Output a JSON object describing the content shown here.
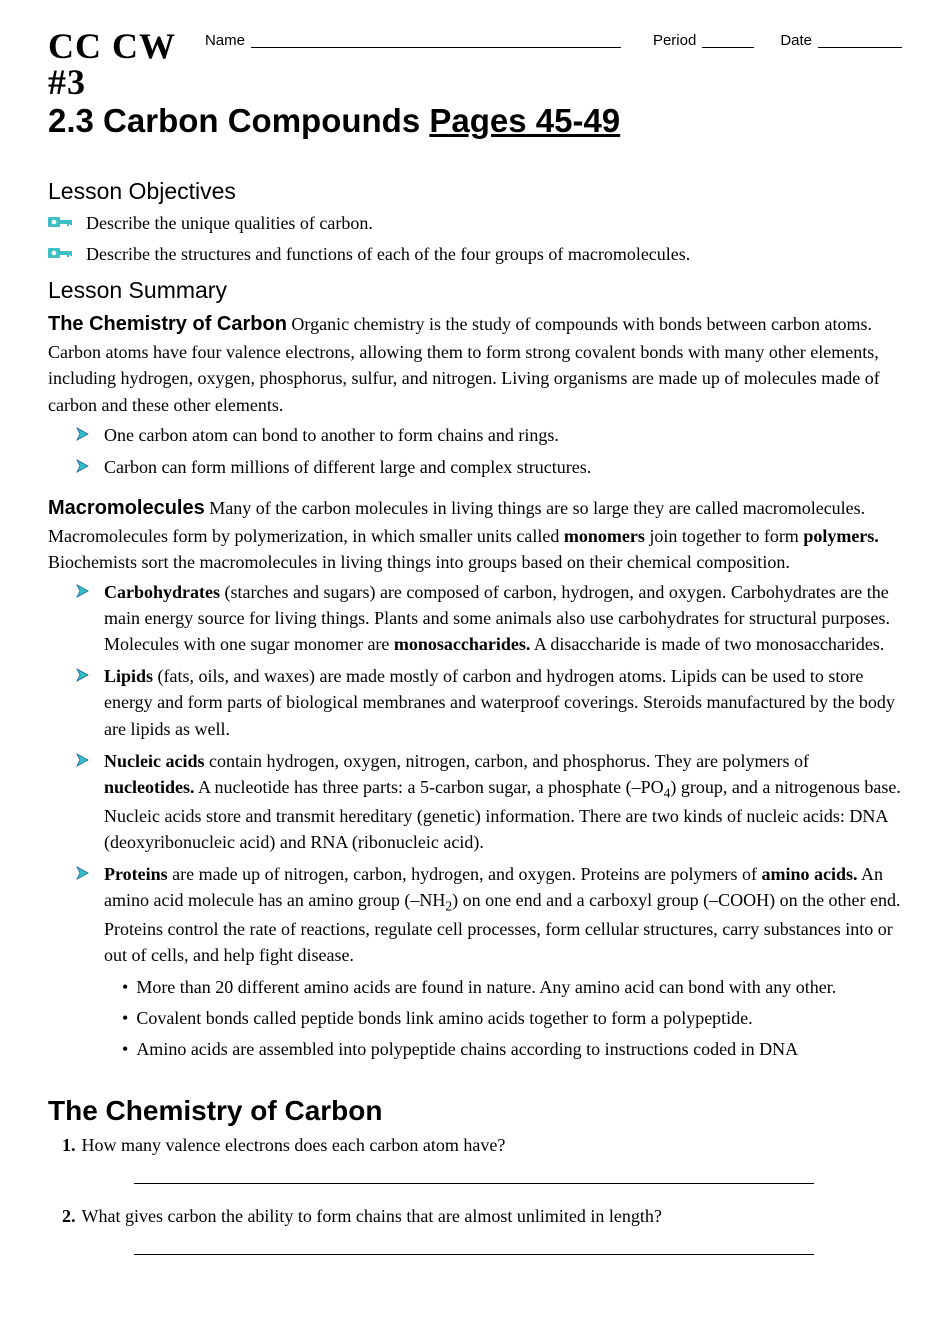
{
  "header": {
    "tag": "CC CW #3",
    "name_label": "Name",
    "period_label": "Period",
    "date_label": "Date"
  },
  "title": {
    "prefix": "2.3 Carbon Compounds ",
    "pages": "Pages 45-49"
  },
  "colors": {
    "key_icon_fill": "#3fbfc4",
    "arrow_fill": "#30c2c7",
    "arrow_stroke": "#1f5fa0",
    "text": "#000000",
    "background": "#ffffff"
  },
  "objectives": {
    "heading": "Lesson Objectives",
    "items": [
      "Describe the unique qualities of carbon.",
      "Describe the structures and functions of each of the four groups of macromolecules."
    ]
  },
  "summary": {
    "heading": "Lesson Summary",
    "chem_lead": "The Chemistry of Carbon",
    "chem_text": " Organic chemistry is the study of compounds with bonds between carbon atoms. Carbon atoms have four valence electrons, allowing them to form strong covalent bonds with many other elements, including hydrogen, oxygen, phosphorus, sulfur, and nitrogen. Living organisms are made up of molecules made of carbon and these other elements.",
    "chem_bullets": [
      "One carbon atom can bond to another to form chains and rings.",
      "Carbon can form millions of different large and complex structures."
    ],
    "macro_lead": "Macromolecules",
    "macro_text": " Many of the carbon molecules in living things are so large they are called macromolecules. Macromolecules form by polymerization, in which smaller units called ",
    "macro_b1": "monomers",
    "macro_text2": " join together to form ",
    "macro_b2": "polymers.",
    "macro_text3": " Biochemists sort the macromolecules in living things into groups based on their chemical composition.",
    "macro_items": [
      {
        "html": "<span class='b'>Carbohydrates</span> (starches and sugars) are composed of carbon, hydrogen, and oxygen. Carbohydrates are the main energy source for living things. Plants and some animals also use carbohydrates for structural purposes. Molecules with one sugar monomer are <span class='b'>monosaccharides.</span> A disaccharide is made of two monosaccharides."
      },
      {
        "html": "<span class='b'>Lipids</span> (fats, oils, and waxes) are made mostly of carbon and hydrogen atoms. Lipids can be used to store energy and form parts of biological membranes and waterproof coverings. Steroids manufactured by the body are lipids as well."
      },
      {
        "html": "<span class='b'>Nucleic acids</span> contain hydrogen, oxygen, nitrogen, carbon, and phosphorus. They are polymers of <span class='b'>nucleotides.</span> A nucleotide has three parts: a 5-carbon sugar, a phosphate (–PO<sub>4</sub>) group, and a nitrogenous base. Nucleic acids store and transmit hereditary (genetic) information. There are two kinds of nucleic acids: DNA (deoxyribonucleic acid) and RNA (ribonucleic acid)."
      },
      {
        "html": "<span class='b'>Proteins</span> are made up of nitrogen, carbon, hydrogen, and oxygen. Proteins are polymers of <span class='b'>amino acids.</span> An amino acid molecule has an amino group (–NH<sub>2</sub>) on one end and a carboxyl group (–COOH) on the other end. Proteins control the rate of reactions, regulate cell processes, form cellular structures, carry substances into or out of cells, and help fight disease.",
        "subs": [
          "More than 20 different amino acids are found in nature. Any amino acid can bond with any other.",
          "Covalent bonds called peptide bonds link amino acids together to form a polypeptide.",
          "Amino acids are assembled into polypeptide chains according to instructions coded in DNA"
        ]
      }
    ]
  },
  "questions": {
    "heading": "The Chemistry of Carbon",
    "items": [
      {
        "num": "1.",
        "text": "How many valence electrons does each carbon atom have?"
      },
      {
        "num": "2.",
        "text": "What gives carbon the ability to form chains that are almost unlimited in length?"
      }
    ]
  }
}
